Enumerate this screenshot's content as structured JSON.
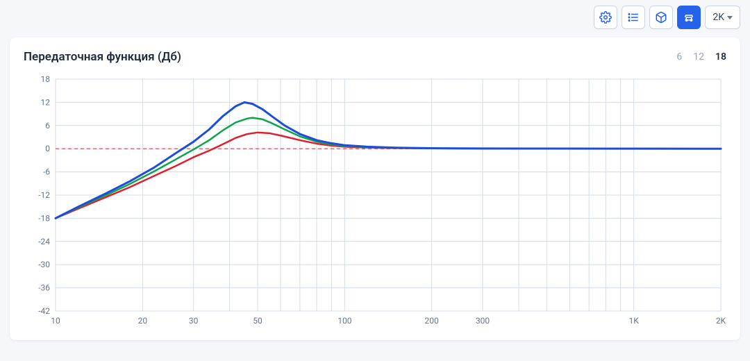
{
  "toolbar": {
    "dropdown_label": "2K"
  },
  "card": {
    "title": "Передаточная функция (Дб)",
    "options": [
      "6",
      "12",
      "18"
    ],
    "selected_option": "18"
  },
  "chart": {
    "type": "line",
    "xscale": "log",
    "xlim": [
      10,
      2000
    ],
    "ylim": [
      -42,
      18
    ],
    "ytick_step": 6,
    "yticks": [
      18,
      12,
      6,
      0,
      -6,
      -12,
      -18,
      -24,
      -30,
      -36,
      -42
    ],
    "xticks": [
      {
        "val": 10,
        "label": "10"
      },
      {
        "val": 20,
        "label": "20"
      },
      {
        "val": 30,
        "label": "30"
      },
      {
        "val": 50,
        "label": "50"
      },
      {
        "val": 100,
        "label": "100"
      },
      {
        "val": 200,
        "label": "200"
      },
      {
        "val": 300,
        "label": "300"
      },
      {
        "val": 1000,
        "label": "1K"
      },
      {
        "val": 2000,
        "label": "2K"
      }
    ],
    "xgrid": [
      10,
      20,
      30,
      40,
      50,
      60,
      70,
      80,
      90,
      100,
      200,
      300,
      400,
      500,
      600,
      700,
      800,
      900,
      1000,
      2000
    ],
    "background_color": "#ffffff",
    "grid_color": "#d4dce8",
    "zero_line_color": "#e06c6c",
    "axis_label_color": "#64748b",
    "axis_fontsize": 12,
    "series": [
      {
        "name": "red",
        "color": "#e11d2e",
        "width": 2.5,
        "points": [
          [
            10,
            -18
          ],
          [
            12,
            -15.5
          ],
          [
            15,
            -12.5
          ],
          [
            18,
            -10
          ],
          [
            22,
            -7
          ],
          [
            26,
            -4.5
          ],
          [
            30,
            -2.2
          ],
          [
            34,
            -0.5
          ],
          [
            38,
            1.2
          ],
          [
            42,
            2.8
          ],
          [
            46,
            3.8
          ],
          [
            50,
            4.2
          ],
          [
            55,
            4.0
          ],
          [
            60,
            3.4
          ],
          [
            70,
            2.2
          ],
          [
            80,
            1.3
          ],
          [
            90,
            0.8
          ],
          [
            100,
            0.5
          ],
          [
            120,
            0.3
          ],
          [
            150,
            0.15
          ],
          [
            200,
            0.08
          ],
          [
            300,
            0.04
          ],
          [
            500,
            0.02
          ],
          [
            1000,
            0.01
          ],
          [
            2000,
            0
          ]
        ]
      },
      {
        "name": "green",
        "color": "#0fa34d",
        "width": 2.5,
        "points": [
          [
            10,
            -18
          ],
          [
            12,
            -15.2
          ],
          [
            15,
            -12
          ],
          [
            18,
            -9.2
          ],
          [
            22,
            -5.8
          ],
          [
            26,
            -2.8
          ],
          [
            30,
            -0.2
          ],
          [
            34,
            2.2
          ],
          [
            38,
            4.8
          ],
          [
            42,
            6.8
          ],
          [
            46,
            7.8
          ],
          [
            48,
            8.0
          ],
          [
            52,
            7.6
          ],
          [
            56,
            6.6
          ],
          [
            62,
            5.0
          ],
          [
            70,
            3.2
          ],
          [
            80,
            1.8
          ],
          [
            90,
            1.1
          ],
          [
            100,
            0.7
          ],
          [
            120,
            0.4
          ],
          [
            150,
            0.2
          ],
          [
            200,
            0.1
          ],
          [
            300,
            0.05
          ],
          [
            500,
            0.02
          ],
          [
            1000,
            0.01
          ],
          [
            2000,
            0
          ]
        ]
      },
      {
        "name": "blue",
        "color": "#1d4ed8",
        "width": 3,
        "points": [
          [
            10,
            -18
          ],
          [
            12,
            -15
          ],
          [
            15,
            -11.5
          ],
          [
            18,
            -8.5
          ],
          [
            22,
            -4.8
          ],
          [
            26,
            -1.2
          ],
          [
            30,
            1.8
          ],
          [
            34,
            5.0
          ],
          [
            38,
            8.5
          ],
          [
            42,
            11.0
          ],
          [
            45,
            12.0
          ],
          [
            48,
            11.6
          ],
          [
            52,
            10.2
          ],
          [
            56,
            8.4
          ],
          [
            62,
            6.0
          ],
          [
            70,
            3.8
          ],
          [
            80,
            2.2
          ],
          [
            90,
            1.4
          ],
          [
            100,
            0.9
          ],
          [
            120,
            0.5
          ],
          [
            150,
            0.25
          ],
          [
            200,
            0.12
          ],
          [
            300,
            0.06
          ],
          [
            500,
            0.03
          ],
          [
            1000,
            0.01
          ],
          [
            2000,
            0
          ]
        ]
      }
    ]
  }
}
